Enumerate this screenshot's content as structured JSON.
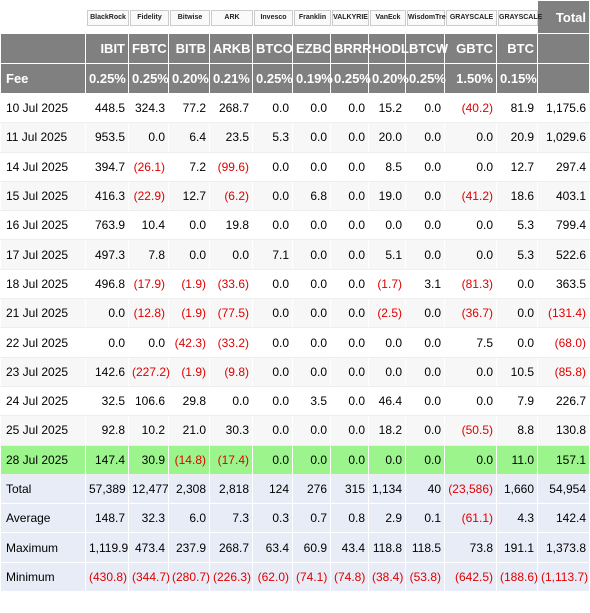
{
  "header": {
    "logos": [
      "BlackRock",
      "Fidelity",
      "Bitwise",
      "ARK",
      "Invesco",
      "Franklin",
      "VALKYRIE",
      "VanEck",
      "WisdomTree",
      "GRAYSCALE",
      "GRAYSCALE"
    ],
    "total": "Total"
  },
  "columns": [
    "IBIT",
    "FBTC",
    "BITB",
    "ARKB",
    "BTCO",
    "EZBC",
    "BRRR",
    "HODL",
    "BTCW",
    "GBTC",
    "BTC"
  ],
  "fee": {
    "label": "Fee",
    "values": [
      "0.25%",
      "0.25%",
      "0.20%",
      "0.21%",
      "0.25%",
      "0.19%",
      "0.25%",
      "0.20%",
      "0.25%",
      "1.50%",
      "0.15%"
    ]
  },
  "rows": [
    [
      "10 Jul 2025",
      "448.5",
      "324.3",
      "77.2",
      "268.7",
      "0.0",
      "0.0",
      "0.0",
      "15.2",
      "0.0",
      "(40.2)",
      "81.9",
      "1,175.6"
    ],
    [
      "11 Jul 2025",
      "953.5",
      "0.0",
      "6.4",
      "23.5",
      "5.3",
      "0.0",
      "0.0",
      "20.0",
      "0.0",
      "0.0",
      "20.9",
      "1,029.6"
    ],
    [
      "14 Jul 2025",
      "394.7",
      "(26.1)",
      "7.2",
      "(99.6)",
      "0.0",
      "0.0",
      "0.0",
      "8.5",
      "0.0",
      "0.0",
      "12.7",
      "297.4"
    ],
    [
      "15 Jul 2025",
      "416.3",
      "(22.9)",
      "12.7",
      "(6.2)",
      "0.0",
      "6.8",
      "0.0",
      "19.0",
      "0.0",
      "(41.2)",
      "18.6",
      "403.1"
    ],
    [
      "16 Jul 2025",
      "763.9",
      "10.4",
      "0.0",
      "19.8",
      "0.0",
      "0.0",
      "0.0",
      "0.0",
      "0.0",
      "0.0",
      "5.3",
      "799.4"
    ],
    [
      "17 Jul 2025",
      "497.3",
      "7.8",
      "0.0",
      "0.0",
      "7.1",
      "0.0",
      "0.0",
      "5.1",
      "0.0",
      "0.0",
      "5.3",
      "522.6"
    ],
    [
      "18 Jul 2025",
      "496.8",
      "(17.9)",
      "(1.9)",
      "(33.6)",
      "0.0",
      "0.0",
      "0.0",
      "(1.7)",
      "3.1",
      "(81.3)",
      "0.0",
      "363.5"
    ],
    [
      "21 Jul 2025",
      "0.0",
      "(12.8)",
      "(1.9)",
      "(77.5)",
      "0.0",
      "0.0",
      "0.0",
      "(2.5)",
      "0.0",
      "(36.7)",
      "0.0",
      "(131.4)"
    ],
    [
      "22 Jul 2025",
      "0.0",
      "0.0",
      "(42.3)",
      "(33.2)",
      "0.0",
      "0.0",
      "0.0",
      "0.0",
      "0.0",
      "7.5",
      "0.0",
      "(68.0)"
    ],
    [
      "23 Jul 2025",
      "142.6",
      "(227.2)",
      "(1.9)",
      "(9.8)",
      "0.0",
      "0.0",
      "0.0",
      "0.0",
      "0.0",
      "0.0",
      "10.5",
      "(85.8)"
    ],
    [
      "24 Jul 2025",
      "32.5",
      "106.6",
      "29.8",
      "0.0",
      "0.0",
      "3.5",
      "0.0",
      "46.4",
      "0.0",
      "0.0",
      "7.9",
      "226.7"
    ],
    [
      "25 Jul 2025",
      "92.8",
      "10.2",
      "21.0",
      "30.3",
      "0.0",
      "0.0",
      "0.0",
      "18.2",
      "0.0",
      "(50.5)",
      "8.8",
      "130.8"
    ],
    [
      "28 Jul 2025",
      "147.4",
      "30.9",
      "(14.8)",
      "(17.4)",
      "0.0",
      "0.0",
      "0.0",
      "0.0",
      "0.0",
      "0.0",
      "11.0",
      "157.1"
    ]
  ],
  "summary": [
    [
      "Total",
      "57,389",
      "12,477",
      "2,308",
      "2,818",
      "124",
      "276",
      "315",
      "1,134",
      "40",
      "(23,586)",
      "1,660",
      "54,954"
    ],
    [
      "Average",
      "148.7",
      "32.3",
      "6.0",
      "7.3",
      "0.3",
      "0.7",
      "0.8",
      "2.9",
      "0.1",
      "(61.1)",
      "4.3",
      "142.4"
    ],
    [
      "Maximum",
      "1,119.9",
      "473.4",
      "237.9",
      "268.7",
      "63.4",
      "60.9",
      "43.4",
      "118.8",
      "118.5",
      "73.8",
      "191.1",
      "1,373.8"
    ],
    [
      "Minimum",
      "(430.8)",
      "(344.7)",
      "(280.7)",
      "(226.3)",
      "(62.0)",
      "(74.1)",
      "(74.8)",
      "(38.4)",
      "(53.8)",
      "(642.5)",
      "(188.6)",
      "(1,113.7)"
    ]
  ]
}
